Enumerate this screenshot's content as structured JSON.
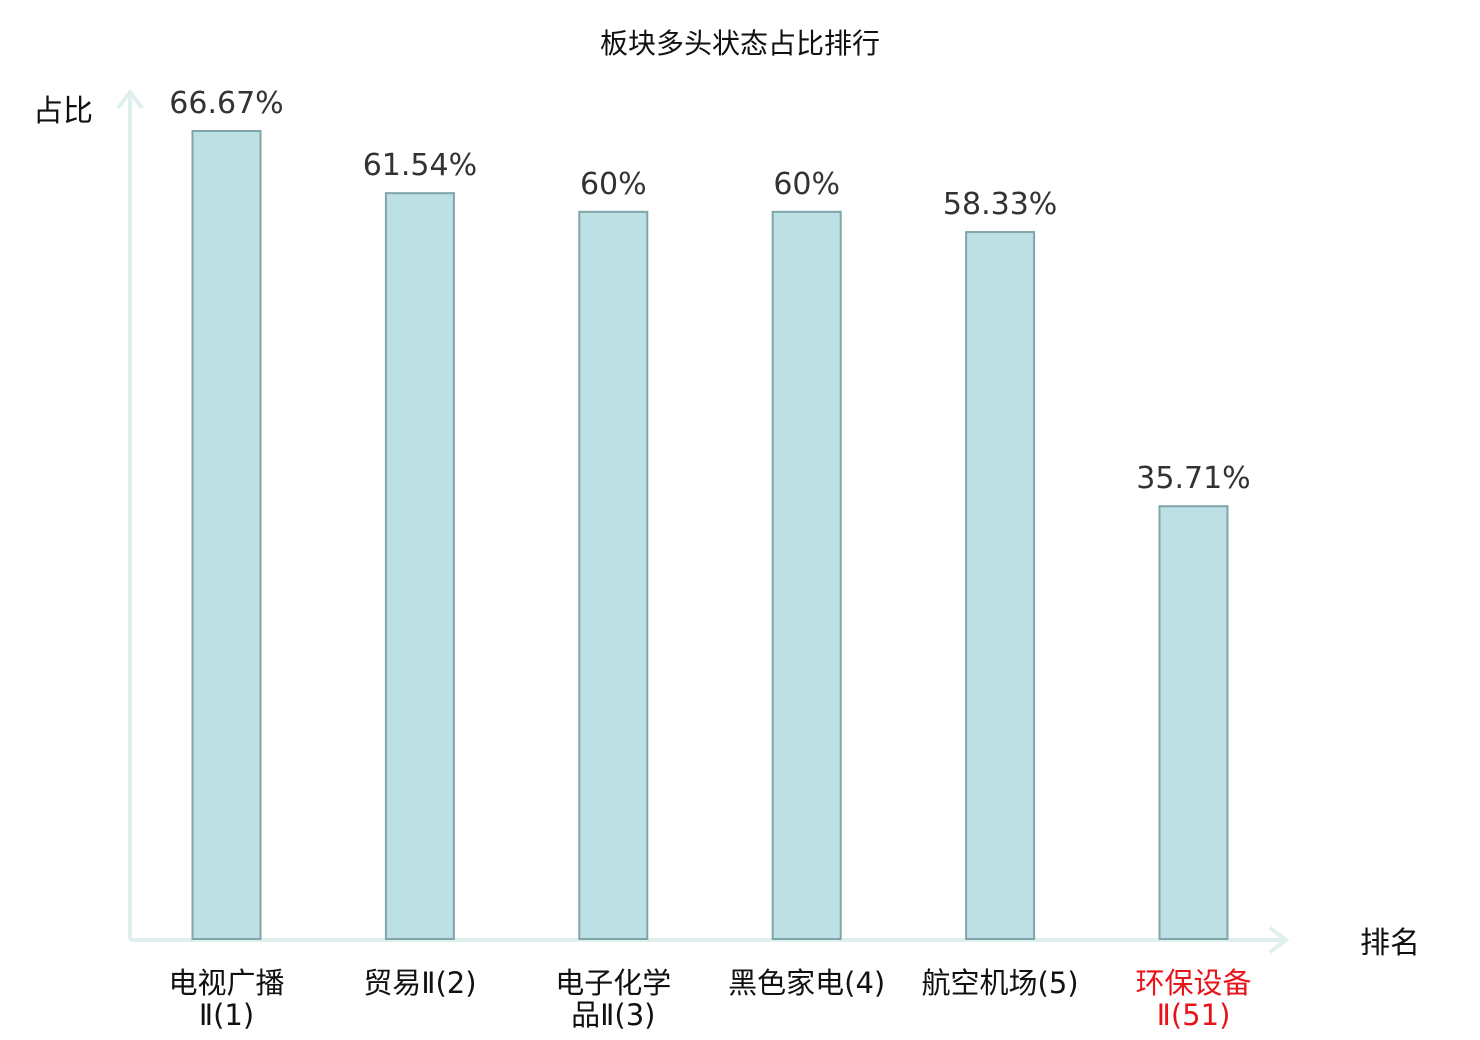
{
  "chart_data": {
    "type": "bar",
    "title": "板块多头状态占比排行",
    "ylabel": "占比",
    "xlabel": "排名",
    "categories": [
      {
        "line1": "电视广播",
        "line2": "Ⅱ(1)",
        "highlight": false
      },
      {
        "line1": "贸易Ⅱ(2)",
        "line2": "",
        "highlight": false
      },
      {
        "line1": "电子化学",
        "line2": "品Ⅱ(3)",
        "highlight": false
      },
      {
        "line1": "黑色家电(4)",
        "line2": "",
        "highlight": false
      },
      {
        "line1": "航空机场(5)",
        "line2": "",
        "highlight": false
      },
      {
        "line1": "环保设备",
        "line2": "Ⅱ(51)",
        "highlight": true
      }
    ],
    "values": [
      66.67,
      61.54,
      60,
      60,
      58.33,
      35.71
    ],
    "value_labels": [
      "66.67%",
      "61.54%",
      "60%",
      "60%",
      "58.33%",
      "35.71%"
    ],
    "ylim": [
      0,
      66.67
    ],
    "grid": false,
    "colors": {
      "bar_fill": "#bce0e3",
      "bar_stroke": "#7fa4a9",
      "axis": "#dff0ee",
      "label": "#111111",
      "highlight": "#e8141b",
      "value_text": "#333333"
    }
  }
}
